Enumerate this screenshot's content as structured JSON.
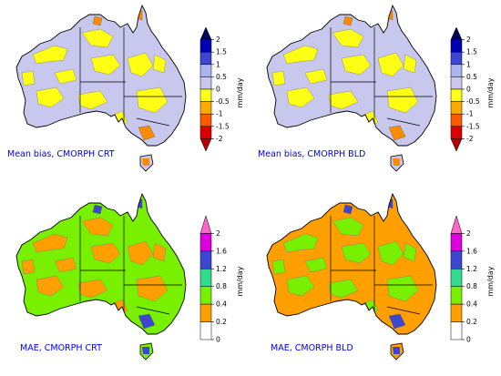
{
  "panels": [
    {
      "caption": "Mean bias, CMORPH CRT",
      "colorbar": {
        "unit": "mm/day",
        "ticks": [
          "2",
          "1.5",
          "1",
          "0.5",
          "0",
          "-0.5",
          "-1",
          "-1.5",
          "-2"
        ],
        "colors": [
          "#00005a",
          "#0000b4",
          "#3c46d2",
          "#aab4f0",
          "#c8c8ee",
          "#ffff14",
          "#ffaa00",
          "#ff5a00",
          "#dc0000",
          "#b40000"
        ],
        "extend": "both"
      },
      "map": {
        "land": "#c8c8ee",
        "patches": "#ffff14",
        "hot": "#ff8c00",
        "outline": "#000000"
      }
    },
    {
      "caption": "Mean bias, CMORPH BLD",
      "colorbar": {
        "unit": "mm/day",
        "ticks": [
          "2",
          "1.5",
          "1",
          "0.5",
          "0",
          "-0.5",
          "-1",
          "-1.5",
          "-2"
        ],
        "colors": [
          "#00005a",
          "#0000b4",
          "#3c46d2",
          "#aab4f0",
          "#c8c8ee",
          "#ffff14",
          "#ffaa00",
          "#ff5a00",
          "#dc0000",
          "#b40000"
        ],
        "extend": "both"
      },
      "map": {
        "land": "#c8c8ee",
        "patches": "#ffff14",
        "hot": "#ff8c00",
        "outline": "#000000"
      }
    },
    {
      "caption": "MAE, CMORPH CRT",
      "colorbar": {
        "unit": "mm/day",
        "ticks": [
          "2",
          "1.6",
          "1.2",
          "0.8",
          "0.4",
          "0.2",
          "0"
        ],
        "colors": [
          "#ff64c8",
          "#dc00dc",
          "#3c46d2",
          "#32dc8c",
          "#78f000",
          "#ffa000",
          "#ffffff"
        ],
        "extend": "max"
      },
      "map": {
        "land": "#78f000",
        "patches": "#ffa000",
        "hot": "#3c46d2",
        "outline": "#000000"
      }
    },
    {
      "caption": "MAE, CMORPH BLD",
      "colorbar": {
        "unit": "mm/day",
        "ticks": [
          "2",
          "1.6",
          "1.2",
          "0.8",
          "0.4",
          "0.2",
          "0"
        ],
        "colors": [
          "#ff64c8",
          "#dc00dc",
          "#3c46d2",
          "#32dc8c",
          "#78f000",
          "#ffa000",
          "#ffffff"
        ],
        "extend": "max"
      },
      "map": {
        "land": "#ffa000",
        "patches": "#78f000",
        "hot": "#3c46d2",
        "outline": "#000000"
      }
    }
  ]
}
